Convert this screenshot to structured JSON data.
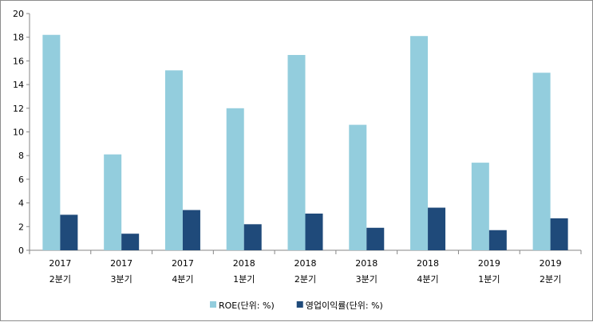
{
  "chart_data": {
    "type": "bar",
    "title": "",
    "xlabel": "",
    "ylabel": "",
    "ylim": [
      0,
      20
    ],
    "yticks": [
      0,
      2,
      4,
      6,
      8,
      10,
      12,
      14,
      16,
      18,
      20
    ],
    "grid": false,
    "legend_position": "bottom",
    "categories": [
      [
        "2017",
        "2분기"
      ],
      [
        "2017",
        "3분기"
      ],
      [
        "2017",
        "4분기"
      ],
      [
        "2018",
        "1분기"
      ],
      [
        "2018",
        "2분기"
      ],
      [
        "2018",
        "3분기"
      ],
      [
        "2018",
        "4분기"
      ],
      [
        "2019",
        "1분기"
      ],
      [
        "2019",
        "2분기"
      ]
    ],
    "series": [
      {
        "name": "ROE(단위: %)",
        "color": "#93CDDD",
        "values": [
          18.2,
          8.1,
          15.2,
          12.0,
          16.5,
          10.6,
          18.1,
          7.4,
          15.0
        ]
      },
      {
        "name": "영업이익률(단위: %)",
        "color": "#1F4A7A",
        "values": [
          3.0,
          1.4,
          3.4,
          2.2,
          3.1,
          1.9,
          3.6,
          1.7,
          2.7
        ]
      }
    ]
  }
}
